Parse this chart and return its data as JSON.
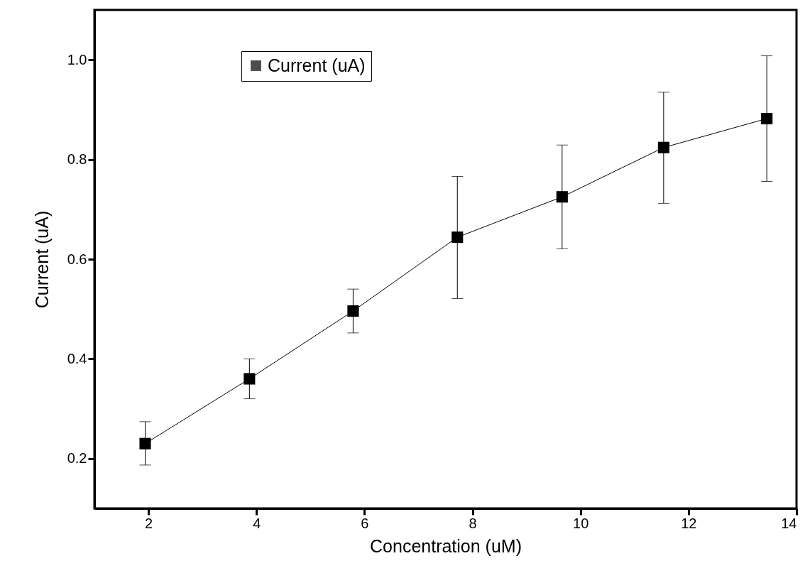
{
  "chart_data": {
    "type": "line",
    "xlabel": "Concentration (uM)",
    "ylabel": "Current (uA)",
    "x": [
      1.94,
      3.87,
      5.79,
      7.72,
      9.66,
      11.54,
      13.45
    ],
    "series": [
      {
        "name": "Current (uA)",
        "color": "#000000",
        "values": [
          0.23,
          0.36,
          0.496,
          0.644,
          0.725,
          0.824,
          0.882
        ],
        "errors": [
          [
            0.187,
            0.274
          ],
          [
            0.32,
            0.4
          ],
          [
            0.452,
            0.54
          ],
          [
            0.521,
            0.766
          ],
          [
            0.621,
            0.829
          ],
          [
            0.712,
            0.935
          ],
          [
            0.756,
            1.008
          ]
        ]
      }
    ],
    "xlim": [
      1,
      14
    ],
    "xticks": [
      2,
      4,
      6,
      8,
      10,
      12,
      14
    ],
    "ylim": [
      0.1,
      1.1
    ],
    "yticks": [
      0.2,
      0.4,
      0.6,
      0.8,
      {
        "value": 1,
        "label": "1.0"
      }
    ],
    "marker": "square",
    "legend": "top left"
  }
}
